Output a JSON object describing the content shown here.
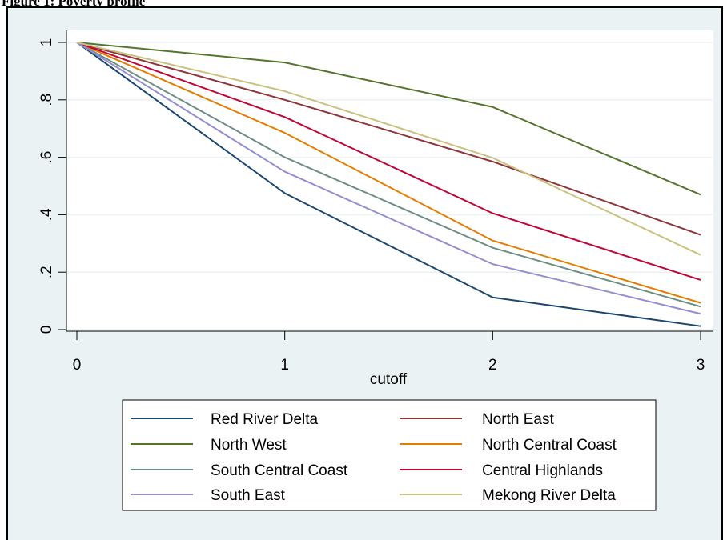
{
  "caption": "Figure 1: Poverty profile",
  "chart_data": {
    "type": "line",
    "xlabel": "cutoff",
    "ylabel": "",
    "x": [
      0,
      1,
      2,
      3
    ],
    "xlim": [
      0,
      3
    ],
    "ylim": [
      0,
      1
    ],
    "x_ticks": [
      "0",
      "1",
      "2",
      "3"
    ],
    "y_ticks": [
      "0",
      ".2",
      ".4",
      ".6",
      ".8",
      "1"
    ],
    "y_tick_values": [
      0,
      0.2,
      0.4,
      0.6,
      0.8,
      1
    ],
    "grid": true,
    "legend_position": "bottom",
    "series": [
      {
        "name": "Red River Delta",
        "color": "#1a476f",
        "values": [
          1,
          0.475,
          0.112,
          0.012
        ]
      },
      {
        "name": "North East",
        "color": "#90353b",
        "values": [
          1,
          0.8,
          0.585,
          0.33
        ]
      },
      {
        "name": "North West",
        "color": "#55752f",
        "values": [
          1,
          0.93,
          0.775,
          0.47
        ]
      },
      {
        "name": "North Central Coast",
        "color": "#e37e00",
        "values": [
          1,
          0.685,
          0.31,
          0.093
        ]
      },
      {
        "name": "South Central Coast",
        "color": "#6e8e84",
        "values": [
          1,
          0.6,
          0.285,
          0.08
        ]
      },
      {
        "name": "Central Highlands",
        "color": "#c10534",
        "values": [
          1,
          0.74,
          0.405,
          0.173
        ]
      },
      {
        "name": "South East",
        "color": "#938dd2",
        "values": [
          1,
          0.55,
          0.228,
          0.055
        ]
      },
      {
        "name": "Mekong River Delta",
        "color": "#cac27e",
        "values": [
          1,
          0.83,
          0.598,
          0.26
        ]
      }
    ]
  }
}
